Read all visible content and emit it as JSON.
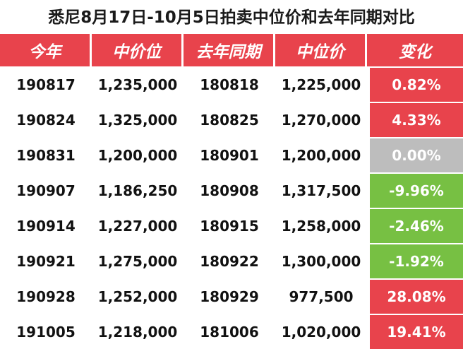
{
  "title": "悉尼8月17日-10月5日拍卖中位价和去年同期对比",
  "headers": [
    "今年",
    "中价位",
    "去年同期",
    "中位价",
    "变化"
  ],
  "colors": {
    "header": "#e8434c",
    "up": "#e8434c",
    "flat": "#bdbdbd",
    "down": "#77c043"
  },
  "rows": [
    {
      "this_year": "190817",
      "median_this": "1,235,000",
      "last_year": "180818",
      "median_last": "1,225,000",
      "change": "0.82%",
      "trend": "up"
    },
    {
      "this_year": "190824",
      "median_this": "1,325,000",
      "last_year": "180825",
      "median_last": "1,270,000",
      "change": "4.33%",
      "trend": "up"
    },
    {
      "this_year": "190831",
      "median_this": "1,200,000",
      "last_year": "180901",
      "median_last": "1,200,000",
      "change": "0.00%",
      "trend": "flat"
    },
    {
      "this_year": "190907",
      "median_this": "1,186,250",
      "last_year": "180908",
      "median_last": "1,317,500",
      "change": "-9.96%",
      "trend": "down"
    },
    {
      "this_year": "190914",
      "median_this": "1,227,000",
      "last_year": "180915",
      "median_last": "1,258,000",
      "change": "-2.46%",
      "trend": "down"
    },
    {
      "this_year": "190921",
      "median_this": "1,275,000",
      "last_year": "180922",
      "median_last": "1,300,000",
      "change": "-1.92%",
      "trend": "down"
    },
    {
      "this_year": "190928",
      "median_this": "1,252,000",
      "last_year": "180929",
      "median_last": "977,500",
      "change": "28.08%",
      "trend": "up"
    },
    {
      "this_year": "191005",
      "median_this": "1,218,000",
      "last_year": "181006",
      "median_last": "1,020,000",
      "change": "19.41%",
      "trend": "up"
    }
  ]
}
